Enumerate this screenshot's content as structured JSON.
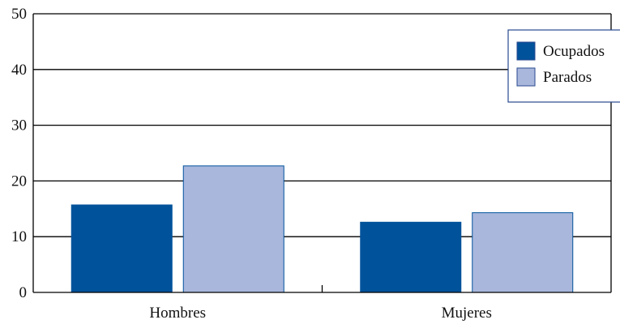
{
  "chart_data": {
    "type": "bar",
    "categories": [
      "Hombres",
      "Mujeres"
    ],
    "series": [
      {
        "name": "Ocupados",
        "values": [
          15.7,
          12.6
        ],
        "color": "#00529b"
      },
      {
        "name": "Parados",
        "values": [
          22.7,
          14.3
        ],
        "color": "#a9b7dc"
      }
    ],
    "ylim": [
      0,
      50
    ],
    "yticks": [
      0,
      10,
      20,
      30,
      40,
      50
    ],
    "grid": true,
    "legend_position": "top-right",
    "title": "",
    "xlabel": "",
    "ylabel": ""
  }
}
